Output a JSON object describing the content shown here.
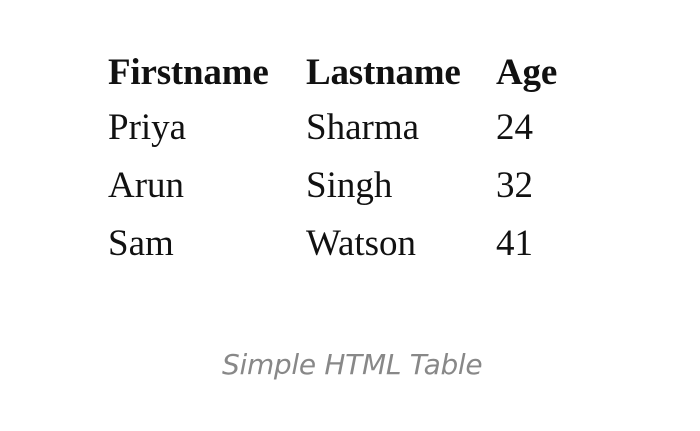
{
  "table": {
    "headers": [
      "Firstname",
      "Lastname",
      "Age"
    ],
    "rows": [
      [
        "Priya",
        "Sharma",
        "24"
      ],
      [
        "Arun",
        "Singh",
        "32"
      ],
      [
        "Sam",
        "Watson",
        "41"
      ]
    ]
  },
  "caption": "Simple HTML Table",
  "colors": {
    "text": "#111111",
    "caption": "#888888",
    "background": "#ffffff"
  }
}
